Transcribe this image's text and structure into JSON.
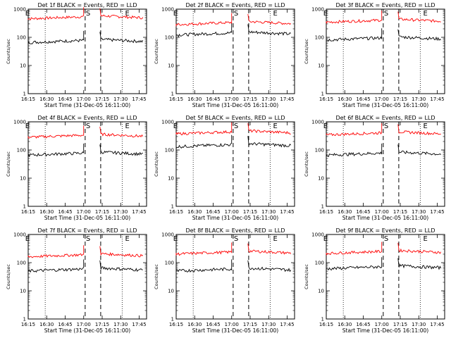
{
  "chart_data": {
    "type": "line",
    "layout": {
      "rows": 3,
      "cols": 3
    },
    "x_ticks": [
      "16:15",
      "16:30",
      "16:45",
      "17:00",
      "17:15",
      "17:30",
      "17:45"
    ],
    "x_range_minutes": [
      16.25,
      17.85
    ],
    "y_scale": "log",
    "ylim": [
      1,
      1000
    ],
    "y_ticks": [
      "1",
      "10",
      "100",
      "1000"
    ],
    "ylabel": "Counts/sec",
    "xlabel": "Start Time (31-Dec-05 16:11:00)",
    "colors": {
      "events": "#000000",
      "lld": "#ff0000"
    },
    "markers": [
      {
        "label": "E",
        "time": 16.2
      },
      {
        "label": "S",
        "time": 17.02
      },
      {
        "label": "E",
        "time": 17.55
      }
    ],
    "panels": [
      {
        "title": "Det 1f BLACK = Events, RED = LLD",
        "events_level": 65,
        "lld_level": 450
      },
      {
        "title": "Det 2f BLACK = Events, RED = LLD",
        "events_level": 120,
        "lld_level": 280
      },
      {
        "title": "Det 3f BLACK = Events, RED = LLD",
        "events_level": 80,
        "lld_level": 340
      },
      {
        "title": "Det 4f BLACK = Events, RED = LLD",
        "events_level": 65,
        "lld_level": 280
      },
      {
        "title": "Det 5f BLACK = Events, RED = LLD",
        "events_level": 130,
        "lld_level": 370
      },
      {
        "title": "Det 6f BLACK = Events, RED = LLD",
        "events_level": 65,
        "lld_level": 340
      },
      {
        "title": "Det 7f BLACK = Events, RED = LLD",
        "events_level": 50,
        "lld_level": 160
      },
      {
        "title": "Det 8f BLACK = Events, RED = LLD",
        "events_level": 50,
        "lld_level": 200
      },
      {
        "title": "Det 9f BLACK = Events, RED = LLD",
        "events_level": 60,
        "lld_level": 210
      }
    ]
  }
}
